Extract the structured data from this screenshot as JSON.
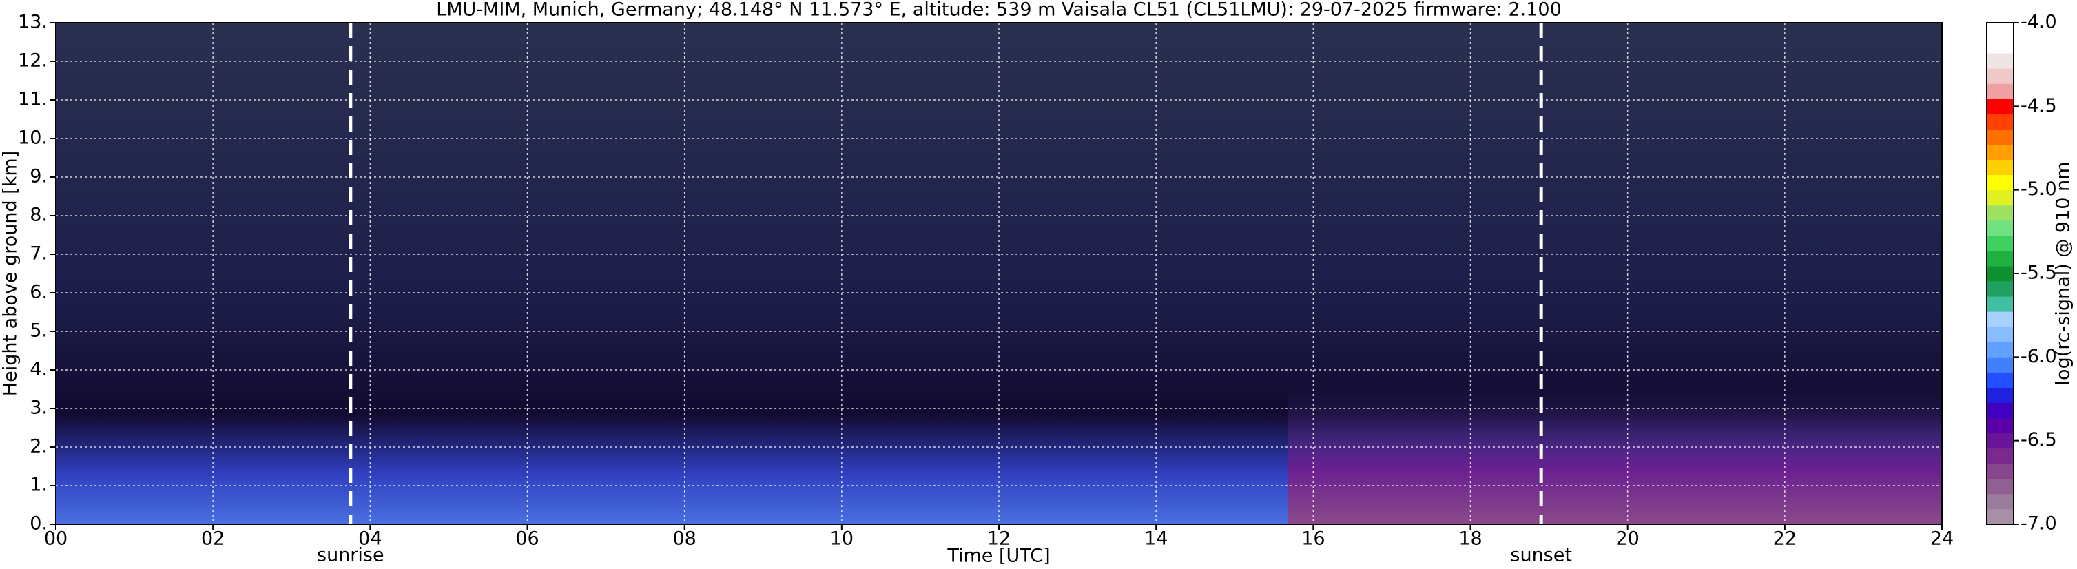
{
  "chart_data": {
    "type": "heatmap",
    "title": "LMU-MIM, Munich, Germany; 48.148° N 11.573° E, altitude: 539 m    Vaisala CL51 (CL51LMU): 29-07-2025    firmware: 2.100",
    "xlabel": "Time [UTC]",
    "ylabel": "Height above ground [km]",
    "xlim": [
      0,
      24
    ],
    "xticks": [
      {
        "value": 0,
        "label": "00"
      },
      {
        "value": 2,
        "label": "02"
      },
      {
        "value": 4,
        "label": "04"
      },
      {
        "value": 6,
        "label": "06"
      },
      {
        "value": 8,
        "label": "08"
      },
      {
        "value": 10,
        "label": "10"
      },
      {
        "value": 12,
        "label": "12"
      },
      {
        "value": 14,
        "label": "14"
      },
      {
        "value": 16,
        "label": "16"
      },
      {
        "value": 18,
        "label": "18"
      },
      {
        "value": 20,
        "label": "20"
      },
      {
        "value": 22,
        "label": "22"
      },
      {
        "value": 24,
        "label": "24"
      }
    ],
    "ylim": [
      0,
      13
    ],
    "yticks": [
      {
        "value": 0,
        "label": "0."
      },
      {
        "value": 1,
        "label": "1."
      },
      {
        "value": 2,
        "label": "2."
      },
      {
        "value": 3,
        "label": "3."
      },
      {
        "value": 4,
        "label": "4."
      },
      {
        "value": 5,
        "label": "5."
      },
      {
        "value": 6,
        "label": "6."
      },
      {
        "value": 7,
        "label": "7."
      },
      {
        "value": 8,
        "label": "8."
      },
      {
        "value": 9,
        "label": "9."
      },
      {
        "value": 10,
        "label": "10."
      },
      {
        "value": 11,
        "label": "11."
      },
      {
        "value": 12,
        "label": "12."
      },
      {
        "value": 13,
        "label": "13."
      }
    ],
    "grid": true,
    "annotations": [
      {
        "x": 3.75,
        "label": "sunrise"
      },
      {
        "x": 18.9,
        "label": "sunset"
      }
    ],
    "colorbar": {
      "label": "log(rc-signal) @ 910 nm",
      "lim": [
        -7,
        -4
      ],
      "ticks": [
        {
          "value": -4,
          "label": "-4.0"
        },
        -4.5,
        {
          "value": -5,
          "label": "-5.0"
        },
        -5.5,
        {
          "value": -6,
          "label": "-6.0"
        },
        -6.5,
        {
          "value": -7,
          "label": "-7.0"
        }
      ],
      "colors": [
        "#a890a8",
        "#9c7c9c",
        "#906090",
        "#88468c",
        "#7a2a8c",
        "#6a149a",
        "#5a00a8",
        "#4000c0",
        "#2020e0",
        "#2050ff",
        "#4080ff",
        "#60a0ff",
        "#88bcff",
        "#a8d0ff",
        "#40c0a0",
        "#20a060",
        "#109030",
        "#20b040",
        "#40d060",
        "#70e080",
        "#a0e060",
        "#e0f020",
        "#ffff00",
        "#ffd000",
        "#ffa000",
        "#ff7000",
        "#ff4000",
        "#ff0000",
        "#f0a0a0",
        "#f0c8c8",
        "#f0e4e4",
        "#ffffff",
        "#ffffff"
      ]
    }
  }
}
